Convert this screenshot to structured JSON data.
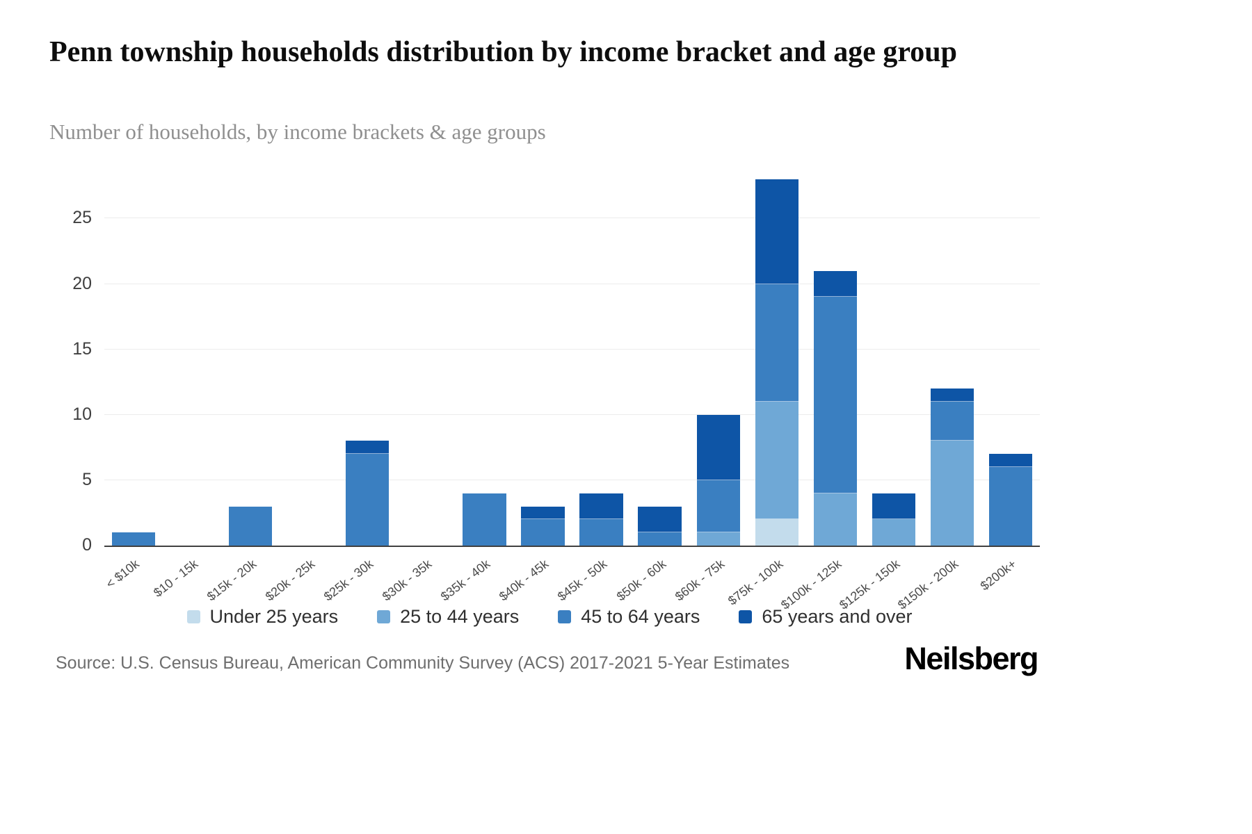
{
  "header": {
    "title": "Penn township households distribution by income bracket and age group",
    "subtitle": "Number of households, by income brackets & age groups"
  },
  "footer": {
    "source": "Source: U.S. Census Bureau, American Community Survey (ACS) 2017-2021 5-Year Estimates",
    "brand": "Neilsberg"
  },
  "chart_data": {
    "type": "bar",
    "stacked": true,
    "title": "Penn township households distribution by income bracket and age group",
    "subtitle": "Number of households, by income brackets & age groups",
    "xlabel": "",
    "ylabel": "",
    "categories": [
      "< $10k",
      "$10 - 15k",
      "$15k - 20k",
      "$20k - 25k",
      "$25k - 30k",
      "$30k - 35k",
      "$35k - 40k",
      "$40k - 45k",
      "$45k - 50k",
      "$50k - 60k",
      "$60k - 75k",
      "$75k - 100k",
      "$100k - 125k",
      "$125k - 150k",
      "$150k - 200k",
      "$200k+"
    ],
    "series": [
      {
        "name": "Under 25 years",
        "color": "#c3dcec",
        "values": [
          0,
          0,
          0,
          0,
          0,
          0,
          0,
          0,
          0,
          0,
          0,
          2,
          0,
          0,
          0,
          0
        ]
      },
      {
        "name": "25 to 44 years",
        "color": "#6fa8d6",
        "values": [
          0,
          0,
          0,
          0,
          0,
          0,
          0,
          0,
          0,
          0,
          1,
          9,
          4,
          2,
          8,
          0
        ]
      },
      {
        "name": "45 to 64 years",
        "color": "#3a7fc1",
        "values": [
          1,
          0,
          3,
          0,
          7,
          0,
          4,
          2,
          2,
          1,
          4,
          9,
          15,
          0,
          3,
          6
        ]
      },
      {
        "name": "65 years and over",
        "color": "#0e55a6",
        "values": [
          0,
          0,
          0,
          0,
          1,
          0,
          0,
          1,
          2,
          2,
          5,
          8,
          2,
          2,
          1,
          1
        ]
      }
    ],
    "totals": [
      1,
      0,
      3,
      0,
      8,
      0,
      4,
      3,
      4,
      3,
      10,
      28,
      21,
      4,
      12,
      7
    ],
    "yticks": [
      0,
      5,
      10,
      15,
      20,
      25
    ],
    "ylim": [
      0,
      28
    ],
    "grid": true,
    "legend_position": "bottom"
  }
}
